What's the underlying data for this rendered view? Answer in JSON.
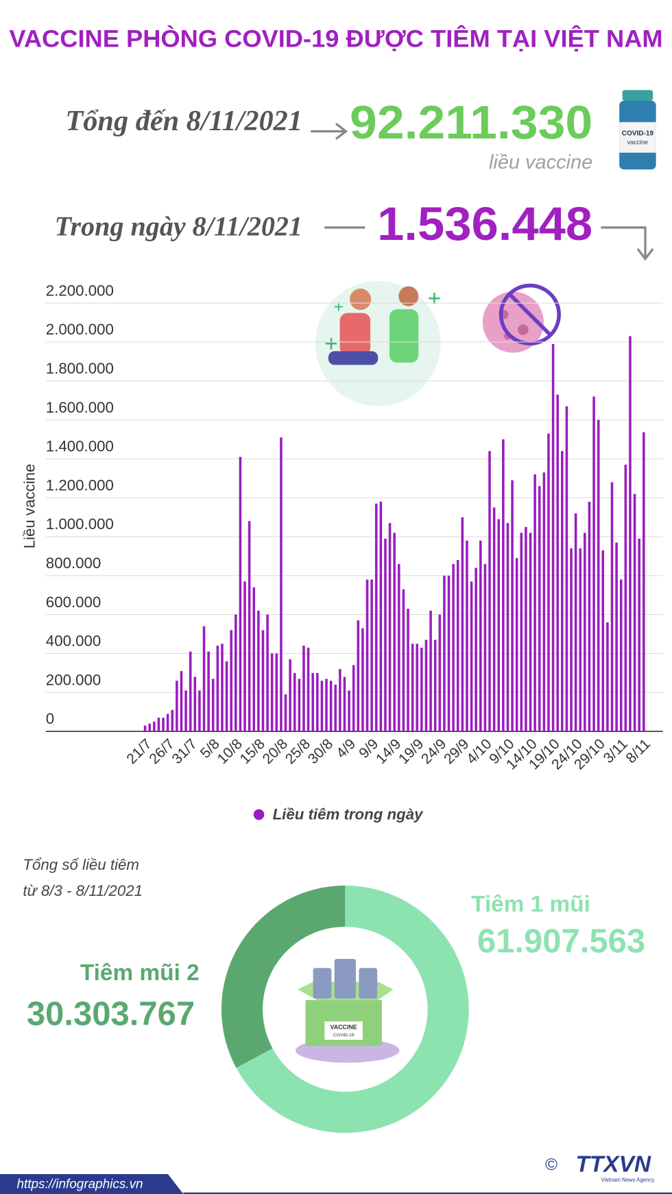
{
  "header": {
    "title": "VACCINE PHÒNG COVID-19 ĐƯỢC TIÊM TẠI VIỆT NAM",
    "total_label": "Tổng đến 8/11/2021",
    "total": "92.211.330",
    "total_unit": "liều vaccine",
    "daily_label": "Trong ngày 8/11/2021",
    "daily": "1.536.448"
  },
  "chart_data": [
    {
      "type": "bar",
      "y_label": "Liều vaccine",
      "categories": [
        "21/7",
        null,
        null,
        null,
        null,
        "26/7",
        null,
        null,
        null,
        null,
        "31/7",
        null,
        null,
        null,
        null,
        "5/8",
        null,
        null,
        null,
        null,
        "10/8",
        null,
        null,
        null,
        null,
        "15/8",
        null,
        null,
        null,
        null,
        "20/8",
        null,
        null,
        null,
        null,
        "25/8",
        null,
        null,
        null,
        null,
        "30/8",
        null,
        null,
        null,
        null,
        "4/9",
        null,
        null,
        null,
        null,
        "9/9",
        null,
        null,
        null,
        null,
        "14/9",
        null,
        null,
        null,
        null,
        "19/9",
        null,
        null,
        null,
        null,
        "24/9",
        null,
        null,
        null,
        null,
        "29/9",
        null,
        null,
        null,
        null,
        "4/10",
        null,
        null,
        null,
        null,
        "9/10",
        null,
        null,
        null,
        null,
        "14/10",
        null,
        null,
        null,
        null,
        "19/10",
        null,
        null,
        null,
        null,
        "24/10",
        null,
        null,
        null,
        null,
        "29/10",
        null,
        null,
        null,
        null,
        "3/11",
        null,
        null,
        null,
        null,
        "8/11"
      ],
      "series": [
        {
          "name": "Liều tiêm trong ngày",
          "color": "#9a1dbf",
          "values": [
            30000,
            40000,
            50000,
            70000,
            70000,
            90000,
            110000,
            260000,
            310000,
            210000,
            410000,
            280000,
            210000,
            540000,
            410000,
            270000,
            440000,
            450000,
            360000,
            520000,
            600000,
            1410000,
            770000,
            1080000,
            740000,
            620000,
            520000,
            600000,
            400000,
            400000,
            1510000,
            190000,
            370000,
            300000,
            270000,
            440000,
            430000,
            300000,
            300000,
            260000,
            270000,
            260000,
            240000,
            320000,
            280000,
            210000,
            340000,
            570000,
            530000,
            780000,
            780000,
            1170000,
            1180000,
            990000,
            1070000,
            1020000,
            860000,
            730000,
            630000,
            450000,
            450000,
            430000,
            470000,
            620000,
            470000,
            600000,
            800000,
            800000,
            860000,
            880000,
            1100000,
            980000,
            770000,
            840000,
            980000,
            860000,
            1440000,
            1150000,
            1090000,
            1500000,
            1070000,
            1290000,
            890000,
            1020000,
            1050000,
            1020000,
            1320000,
            1260000,
            1330000,
            1530000,
            1990000,
            1730000,
            1440000,
            1670000,
            940000,
            1120000,
            940000,
            1020000,
            1180000,
            1720000,
            1600000,
            930000,
            560000,
            1280000,
            970000,
            780000,
            1370000,
            2030000,
            1220000,
            990000,
            1536448
          ]
        }
      ],
      "ylim": [
        0,
        2200000
      ],
      "yticks": [
        0,
        {
          "value": 200000,
          "label": "200.000"
        },
        {
          "value": 400000,
          "label": "400.000"
        },
        {
          "value": 600000,
          "label": "600.000"
        },
        {
          "value": 800000,
          "label": "800.000"
        },
        {
          "value": 1000000,
          "label": "1.000.000"
        },
        {
          "value": 1200000,
          "label": "1.200.000"
        },
        {
          "value": 1400000,
          "label": "1.400.000"
        },
        {
          "value": 1600000,
          "label": "1.600.000"
        },
        {
          "value": 1800000,
          "label": "1.800.000"
        },
        {
          "value": 2000000,
          "label": "2.000.000"
        },
        {
          "value": 2200000,
          "label": "2.200.000"
        }
      ],
      "grid": true,
      "legend": "bottom"
    },
    {
      "type": "pie",
      "title": "Tổng số liều tiêm",
      "subtitle": "từ 8/3 - 8/11/2021",
      "categories": [
        "Tiêm 1 mũi",
        "Tiêm mũi 2"
      ],
      "values": [
        61907563,
        30303767
      ],
      "value_labels": [
        "61.907.563",
        "30.303.767"
      ],
      "colors": [
        "#8de3b0",
        "#5aa870"
      ]
    }
  ],
  "footer": {
    "url": "https://infographics.vn",
    "copyright": "©",
    "logo": "TTXVN",
    "logo_sub": "Vietnam News Agency"
  }
}
